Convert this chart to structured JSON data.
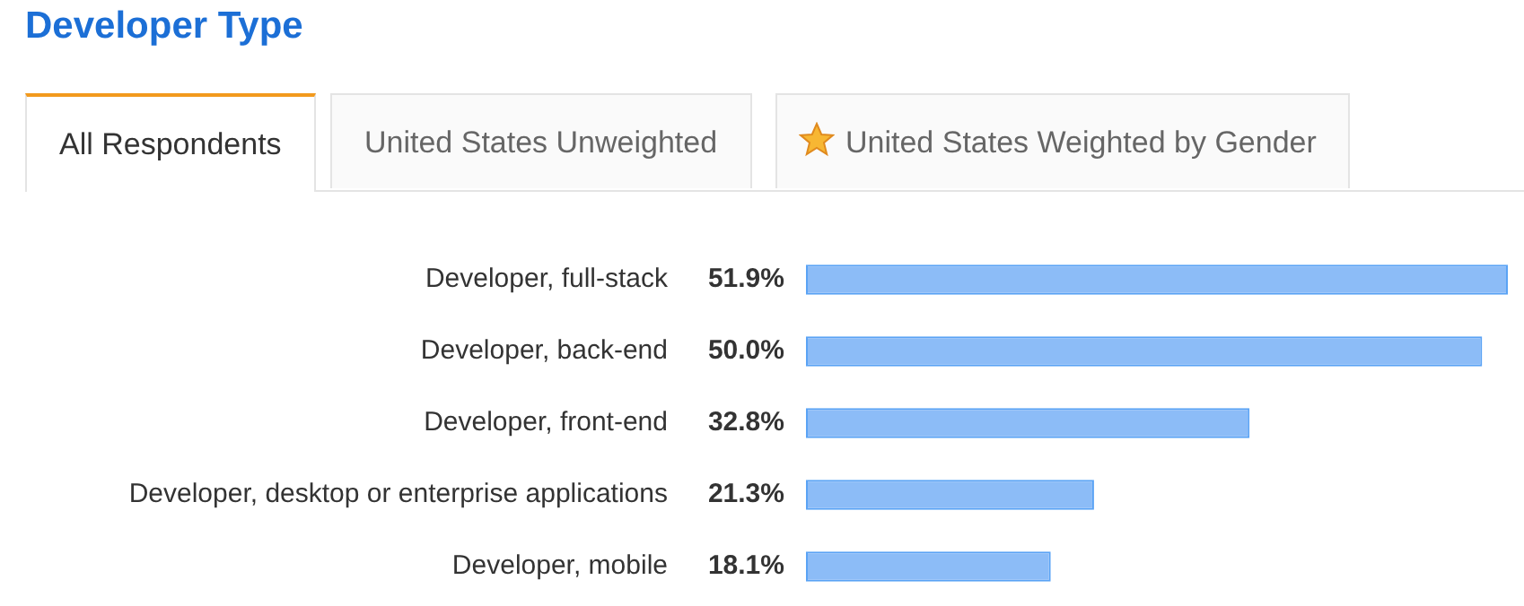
{
  "chart_data": {
    "type": "bar",
    "orientation": "horizontal",
    "title": "Developer Type",
    "annotations": [
      "All Respondents",
      "United States Unweighted",
      "United States Weighted by Gender"
    ],
    "categories": [
      "Developer, full-stack",
      "Developer, back-end",
      "Developer, front-end",
      "Developer, desktop or enterprise applications",
      "Developer, mobile"
    ],
    "values": [
      51.9,
      50.0,
      32.8,
      21.3,
      18.1
    ],
    "value_labels": [
      "51.9%",
      "50.0%",
      "32.8%",
      "21.3%",
      "18.1%"
    ],
    "color": "#8cbcf7",
    "xlim": [
      0,
      51.9
    ],
    "tick_labels": "y",
    "grid": false,
    "legend": false
  }
}
